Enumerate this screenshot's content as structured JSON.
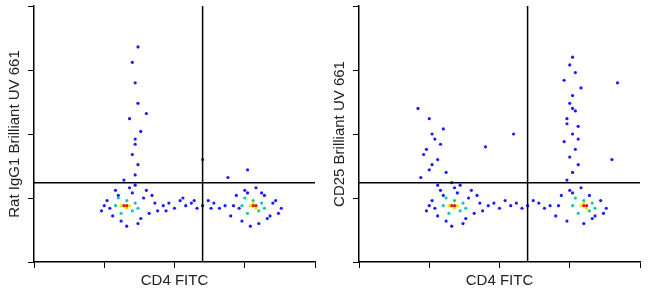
{
  "chart_data": [
    {
      "type": "scatter",
      "x_label": "CD4 FITC",
      "y_label": "Rat IgG1 Brilliant UV 661",
      "xlim": [
        0,
        100
      ],
      "ylim": [
        0,
        100
      ],
      "xticks": [
        0,
        25,
        50,
        75,
        100
      ],
      "yticks": [
        0,
        25,
        50,
        75,
        100
      ],
      "grid": false,
      "tick_labels": false,
      "marker": "circle",
      "gates": {
        "x": 60,
        "y": 31
      },
      "series": [
        {
          "color": "#1a1aff",
          "x": [
            24,
            26,
            28,
            30,
            31,
            35,
            37,
            39,
            41,
            43,
            25,
            29,
            34,
            38,
            42,
            27,
            33,
            36,
            40,
            44,
            46,
            48,
            50,
            52,
            54,
            56,
            58,
            60,
            62,
            64,
            66,
            68,
            47,
            53,
            57,
            63,
            70,
            72,
            74,
            76,
            80,
            82,
            84,
            86,
            88,
            71,
            75,
            79,
            83,
            87,
            73,
            77,
            81,
            85,
            36,
            37,
            35,
            36,
            38,
            34,
            37,
            36,
            35,
            37,
            76,
            69,
            60,
            40,
            32,
            36
          ],
          "y": [
            20,
            24,
            18,
            26,
            16,
            27,
            15,
            25,
            19,
            23,
            22,
            28,
            29,
            17,
            26,
            21,
            14,
            30,
            28,
            20,
            22,
            23,
            21,
            24,
            22,
            23,
            21,
            22,
            24,
            23,
            21,
            22,
            20,
            25,
            24,
            21,
            18,
            26,
            16,
            27,
            15,
            26,
            18,
            24,
            21,
            22,
            28,
            29,
            17,
            19,
            21,
            14,
            27,
            23,
            34,
            38,
            42,
            46,
            51,
            56,
            62,
            70,
            78,
            84,
            36,
            33,
            40,
            58,
            32,
            48
          ]
        },
        {
          "color": "#10c8a8",
          "x": [
            29,
            33,
            37,
            31,
            35,
            30,
            36,
            74,
            78,
            82,
            76,
            80,
            75,
            81
          ],
          "y": [
            22,
            24,
            21,
            19,
            20,
            25,
            23,
            22,
            24,
            21,
            19,
            20,
            25,
            23
          ]
        },
        {
          "color": "#f2e600",
          "x": [
            31,
            34,
            33,
            77,
            79,
            78
          ],
          "y": [
            22,
            22,
            21,
            22,
            21,
            23
          ]
        },
        {
          "color": "#e8150c",
          "x": [
            32,
            33,
            78,
            79
          ],
          "y": [
            22,
            22,
            22,
            22
          ]
        }
      ]
    },
    {
      "type": "scatter",
      "x_label": "CD4 FITC",
      "y_label": "CD25 Brilliant UV 661",
      "xlim": [
        0,
        100
      ],
      "ylim": [
        0,
        100
      ],
      "xticks": [
        0,
        25,
        50,
        75,
        100
      ],
      "yticks": [
        0,
        25,
        50,
        75,
        100
      ],
      "grid": false,
      "tick_labels": false,
      "marker": "circle",
      "gates": {
        "x": 60,
        "y": 31
      },
      "series": [
        {
          "color": "#1a1aff",
          "x": [
            24,
            26,
            28,
            30,
            31,
            35,
            37,
            39,
            41,
            43,
            25,
            29,
            34,
            38,
            42,
            27,
            33,
            36,
            40,
            44,
            46,
            48,
            50,
            52,
            54,
            56,
            58,
            60,
            62,
            64,
            66,
            68,
            70,
            72,
            74,
            76,
            80,
            82,
            84,
            86,
            88,
            71,
            75,
            79,
            83,
            87,
            74,
            76,
            78,
            75,
            77,
            73,
            76,
            78,
            74,
            77,
            75,
            76,
            79,
            73,
            77,
            75,
            76,
            78,
            74,
            76,
            22,
            25,
            28,
            24,
            27,
            30,
            26,
            23,
            29,
            31,
            25,
            28,
            33,
            21,
            26,
            45,
            55,
            90,
            92
          ],
          "y": [
            20,
            24,
            18,
            26,
            16,
            27,
            15,
            25,
            19,
            23,
            22,
            28,
            29,
            17,
            26,
            21,
            14,
            30,
            28,
            20,
            22,
            23,
            21,
            24,
            22,
            23,
            21,
            22,
            24,
            23,
            21,
            22,
            18,
            26,
            16,
            27,
            15,
            26,
            18,
            24,
            21,
            22,
            28,
            29,
            17,
            19,
            32,
            35,
            38,
            41,
            44,
            47,
            50,
            53,
            56,
            59,
            62,
            65,
            68,
            71,
            74,
            77,
            80,
            48,
            54,
            60,
            33,
            36,
            40,
            44,
            48,
            52,
            38,
            42,
            46,
            35,
            56,
            30,
            31,
            60,
            50,
            45,
            50,
            40,
            70
          ]
        },
        {
          "color": "#10c8a8",
          "x": [
            30,
            34,
            38,
            32,
            36,
            31,
            37,
            76,
            80,
            84,
            78,
            82,
            77,
            83
          ],
          "y": [
            22,
            24,
            21,
            19,
            20,
            25,
            23,
            22,
            24,
            21,
            19,
            20,
            25,
            23
          ]
        },
        {
          "color": "#f2e600",
          "x": [
            32,
            35,
            34,
            79,
            81,
            80
          ],
          "y": [
            22,
            22,
            21,
            22,
            21,
            23
          ]
        },
        {
          "color": "#e8150c",
          "x": [
            33,
            34,
            80,
            81
          ],
          "y": [
            22,
            22,
            22,
            22
          ]
        }
      ]
    }
  ]
}
